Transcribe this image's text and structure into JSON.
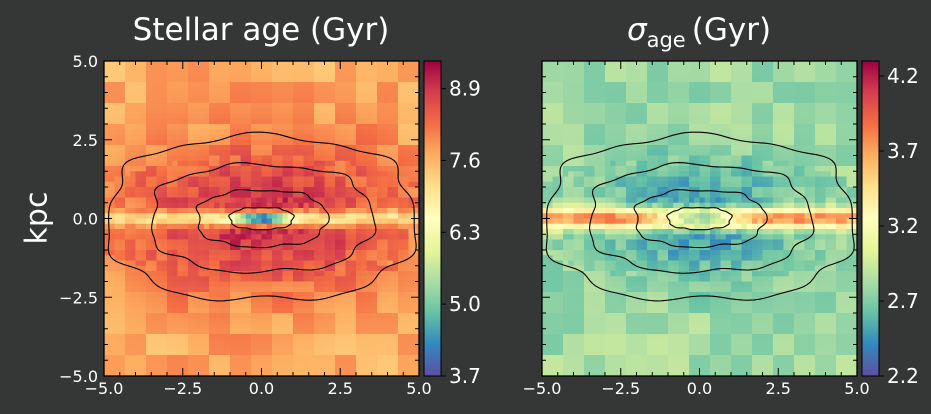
{
  "figure": {
    "background": "#353636",
    "ylabel": "kpc"
  },
  "chart_data": [
    {
      "type": "heatmap",
      "title": "Stellar age (Gyr)",
      "title_main": "Stellar age (Gyr)",
      "xlim": [
        -5.0,
        5.0
      ],
      "ylim": [
        -5.0,
        5.0
      ],
      "x_ticks": [
        "−5.0",
        "−2.5",
        "0.0",
        "2.5",
        "5.0"
      ],
      "y_ticks": [
        "−5.0",
        "−2.5",
        "0.0",
        "2.5",
        "5.0"
      ],
      "colorbar": {
        "min": 3.7,
        "max": 9.4,
        "ticks": [
          3.7,
          5.0,
          6.3,
          7.6,
          8.9
        ],
        "tick_labels": [
          "3.7",
          "5.0",
          "6.3",
          "7.6",
          "8.9"
        ],
        "colormap": "Spectral_r"
      },
      "field": {
        "background": 7.7,
        "components": [
          {
            "kind": "thick",
            "amp": 1.3,
            "sx": 3.4,
            "sy": 1.7
          },
          {
            "kind": "thin",
            "amp": -2.0,
            "sx": 4.5,
            "sy": 0.18
          },
          {
            "kind": "core",
            "amp": -4.5,
            "sx": 0.55,
            "sy": 0.09
          }
        ]
      },
      "contours": [
        {
          "a": 1.0,
          "b": 0.35
        },
        {
          "a": 2.05,
          "b": 0.9
        },
        {
          "a": 3.5,
          "b": 1.7
        },
        {
          "a": 4.85,
          "b": 2.6
        }
      ]
    },
    {
      "type": "heatmap",
      "title_main": "σ",
      "title_sub": "age",
      "title_unit": "(Gyr)",
      "xlim": [
        -5.0,
        5.0
      ],
      "ylim": [
        -5.0,
        5.0
      ],
      "x_ticks": [
        "−5.0",
        "−2.5",
        "0.0",
        "2.5",
        "5.0"
      ],
      "y_ticks": [],
      "colorbar": {
        "min": 2.2,
        "max": 4.3,
        "ticks": [
          2.2,
          2.7,
          3.2,
          3.7,
          4.2
        ],
        "tick_labels": [
          "2.2",
          "2.7",
          "3.2",
          "3.7",
          "4.2"
        ],
        "colormap": "Spectral_r"
      },
      "field": {
        "background": 2.8,
        "components": [
          {
            "kind": "bulge",
            "amp": -0.35,
            "sx": 2.2,
            "sy": 1.3
          },
          {
            "kind": "thin",
            "amp": 1.35,
            "sx": 5.5,
            "sy": 0.22
          },
          {
            "kind": "core",
            "amp": -1.1,
            "sx": 0.9,
            "sy": 0.12
          }
        ]
      },
      "contours": [
        {
          "a": 1.0,
          "b": 0.35
        },
        {
          "a": 2.05,
          "b": 0.9
        },
        {
          "a": 3.5,
          "b": 1.7
        },
        {
          "a": 4.85,
          "b": 2.6
        }
      ]
    }
  ]
}
